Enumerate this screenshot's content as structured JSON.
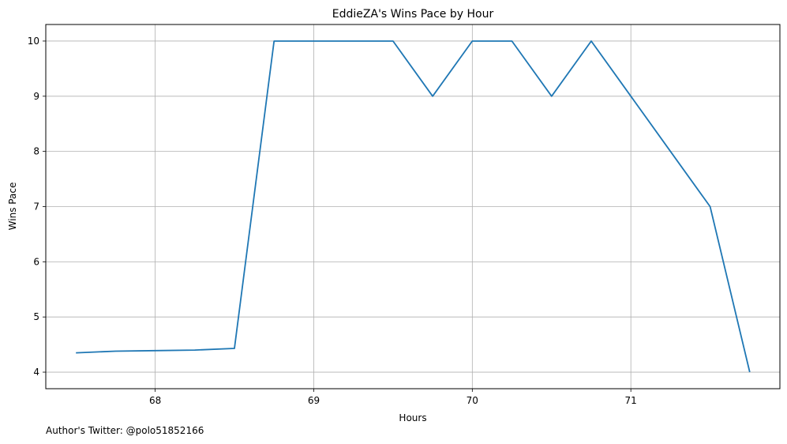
{
  "chart_data": {
    "type": "line",
    "title": "EddieZA's Wins Pace by Hour",
    "xlabel": "Hours",
    "ylabel": "Wins Pace",
    "xlim": [
      67.31,
      71.94
    ],
    "ylim": [
      3.7,
      10.3
    ],
    "xticks": [
      68,
      69,
      70,
      71
    ],
    "yticks": [
      4,
      5,
      6,
      7,
      8,
      9,
      10
    ],
    "grid": true,
    "series": [
      {
        "color": "#1f77b4",
        "x": [
          67.5,
          67.75,
          68.0,
          68.25,
          68.5,
          68.75,
          69.0,
          69.25,
          69.5,
          69.75,
          70.0,
          70.25,
          70.5,
          70.75,
          71.0,
          71.25,
          71.5,
          71.75
        ],
        "y": [
          4.35,
          4.38,
          4.39,
          4.4,
          4.43,
          10,
          10,
          10,
          10,
          9,
          10,
          10,
          9,
          10,
          9,
          8,
          7,
          4
        ]
      }
    ]
  },
  "footnote": "Author's Twitter: @polo51852166"
}
